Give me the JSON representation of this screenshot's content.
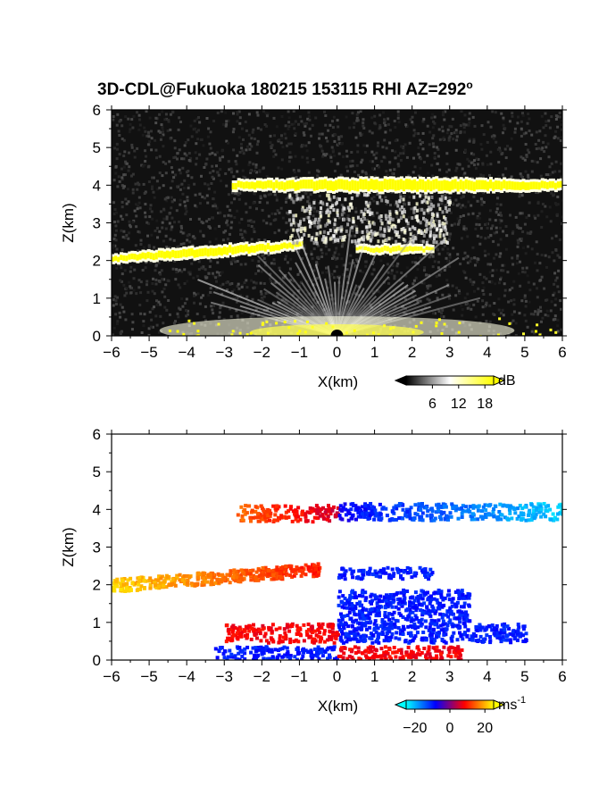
{
  "title": "3D-CDL@Fukuoka 180215 153115 RHI AZ=292",
  "title_superscript": "o",
  "chart_data": [
    {
      "type": "heatmap",
      "name": "backscatter",
      "xlabel": "X(km)",
      "ylabel": "Z(km)",
      "xlim": [
        -6,
        6
      ],
      "ylim": [
        0,
        6
      ],
      "xticks": [
        -6,
        -5,
        -4,
        -3,
        -2,
        -1,
        0,
        1,
        2,
        3,
        4,
        5,
        6
      ],
      "yticks": [
        0,
        1,
        2,
        3,
        4,
        5,
        6
      ],
      "background": "#111111",
      "colorbar": {
        "unit": "dB",
        "ticks": [
          6,
          12,
          18
        ],
        "range": [
          0,
          20
        ],
        "colors": [
          "#000000",
          "#ffffff",
          "#ffff00"
        ]
      },
      "layers": [
        {
          "kind": "cloud",
          "x": [
            -2.8,
            6.0
          ],
          "z": [
            3.8,
            4.2
          ],
          "level": 20
        },
        {
          "kind": "cloud",
          "x": [
            -6.0,
            -1.0
          ],
          "z": [
            1.9,
            2.5
          ],
          "level": 20
        },
        {
          "kind": "cloud",
          "x": [
            0.5,
            2.5
          ],
          "z": [
            2.2,
            2.4
          ],
          "level": 19
        },
        {
          "kind": "haze",
          "x": [
            -1.3,
            3.0
          ],
          "z": [
            2.5,
            3.8
          ],
          "level": 11
        },
        {
          "kind": "fan",
          "x": [
            -2.0,
            2.5
          ],
          "z": [
            0.5,
            1.9
          ],
          "level": 9
        },
        {
          "kind": "surface",
          "x": [
            -4.5,
            6.0
          ],
          "z": [
            0.0,
            0.5
          ],
          "level": 14
        }
      ]
    },
    {
      "type": "heatmap",
      "name": "doppler-velocity",
      "xlabel": "X(km)",
      "ylabel": "Z(km)",
      "xlim": [
        -6,
        6
      ],
      "ylim": [
        0,
        6
      ],
      "xticks": [
        -6,
        -5,
        -4,
        -3,
        -2,
        -1,
        0,
        1,
        2,
        3,
        4,
        5,
        6
      ],
      "yticks": [
        0,
        1,
        2,
        3,
        4,
        5,
        6
      ],
      "colorbar": {
        "unit": "ms",
        "unit_superscript": "-1",
        "ticks": [
          -20,
          0,
          20
        ],
        "tick_labels": [
          "−20",
          "0",
          "20"
        ],
        "range": [
          -25,
          25
        ],
        "colors": [
          "#00ffff",
          "#0000ff",
          "#ff0000",
          "#ffff00"
        ]
      },
      "layers": [
        {
          "x": [
            -2.7,
            0.0
          ],
          "z": [
            3.7,
            4.15
          ],
          "v": [
            15,
            5
          ]
        },
        {
          "x": [
            0.0,
            6.0
          ],
          "z": [
            3.75,
            4.2
          ],
          "v": [
            -8,
            -22
          ]
        },
        {
          "x": [
            -6.0,
            -0.5
          ],
          "z": [
            1.9,
            2.5
          ],
          "v": [
            22,
            10
          ]
        },
        {
          "x": [
            0.0,
            2.5
          ],
          "z": [
            2.2,
            2.5
          ],
          "v": [
            -10,
            -10
          ]
        },
        {
          "x": [
            0.0,
            3.5
          ],
          "z": [
            1.0,
            1.9
          ],
          "v": [
            -10,
            -10
          ]
        },
        {
          "x": [
            -3.0,
            0.0
          ],
          "z": [
            0.5,
            1.0
          ],
          "v": [
            8,
            8
          ]
        },
        {
          "x": [
            0.0,
            5.0
          ],
          "z": [
            0.5,
            1.0
          ],
          "v": [
            -10,
            -10
          ]
        },
        {
          "x": [
            -3.3,
            0.0
          ],
          "z": [
            0.05,
            0.4
          ],
          "v": [
            -10,
            -10
          ]
        },
        {
          "x": [
            0.0,
            3.3
          ],
          "z": [
            0.05,
            0.4
          ],
          "v": [
            8,
            8
          ]
        }
      ]
    }
  ]
}
